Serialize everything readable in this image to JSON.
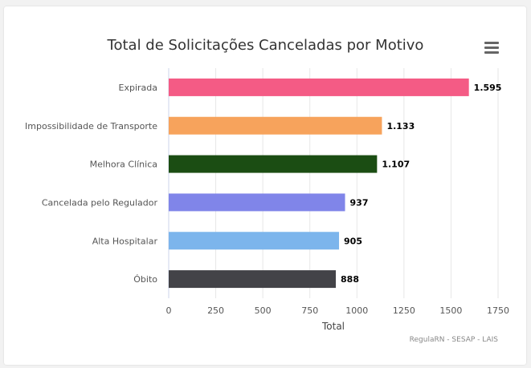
{
  "chart_data": {
    "type": "bar",
    "orientation": "horizontal",
    "title": "Total de Solicitações Canceladas por Motivo",
    "categories": [
      "Expirada",
      "Impossibilidade de Transporte",
      "Melhora Clínica",
      "Cancelada pelo Regulador",
      "Alta Hospitalar",
      "Óbito"
    ],
    "values": [
      1595,
      1133,
      1107,
      937,
      905,
      888
    ],
    "value_labels": [
      "1.595",
      "1.133",
      "1.107",
      "937",
      "905",
      "888"
    ],
    "colors": [
      "#f45b85",
      "#f7a35c",
      "#1b4d13",
      "#8085e9",
      "#7cb5ec",
      "#434348"
    ],
    "xlabel": "Total",
    "ylabel": "",
    "xlim": [
      0,
      1750
    ],
    "xticks": [
      0,
      250,
      500,
      750,
      1000,
      1250,
      1500,
      1750
    ],
    "grid": true,
    "legend": "none",
    "credits": "RegulaRN - SESAP - LAIS"
  },
  "menu": {
    "icon": "hamburger-menu-icon"
  }
}
